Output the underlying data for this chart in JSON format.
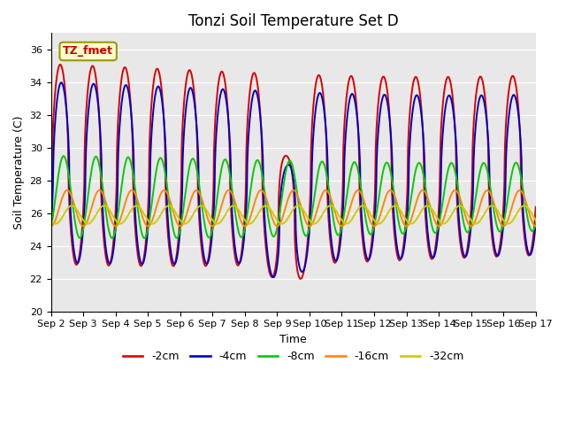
{
  "title": "Tonzi Soil Temperature Set D",
  "xlabel": "Time",
  "ylabel": "Soil Temperature (C)",
  "ylim": [
    20,
    37
  ],
  "yticks": [
    20,
    22,
    24,
    26,
    28,
    30,
    32,
    34,
    36
  ],
  "xtick_labels": [
    "Sep 2",
    "Sep 3",
    "Sep 4",
    "Sep 5",
    "Sep 6",
    "Sep 7",
    "Sep 8",
    "Sep 9",
    "Sep 10",
    "Sep 11",
    "Sep 12",
    "Sep 13",
    "Sep 14",
    "Sep 15",
    "Sep 16",
    "Sep 17"
  ],
  "series_colors": [
    "#dd0000",
    "#0000cc",
    "#00cc00",
    "#ff8800",
    "#cccc00"
  ],
  "series_labels": [
    "-2cm",
    "-4cm",
    "-8cm",
    "-16cm",
    "-32cm"
  ],
  "annotation_text": "TZ_fmet",
  "annotation_bg": "#ffffcc",
  "annotation_border": "#999900",
  "annotation_textcolor": "#cc0000",
  "plot_bg": "#e8e8e8",
  "fig_bg": "#ffffff",
  "linewidth": 1.4,
  "title_fontsize": 12,
  "label_fontsize": 9,
  "tick_fontsize": 8,
  "legend_fontsize": 9
}
